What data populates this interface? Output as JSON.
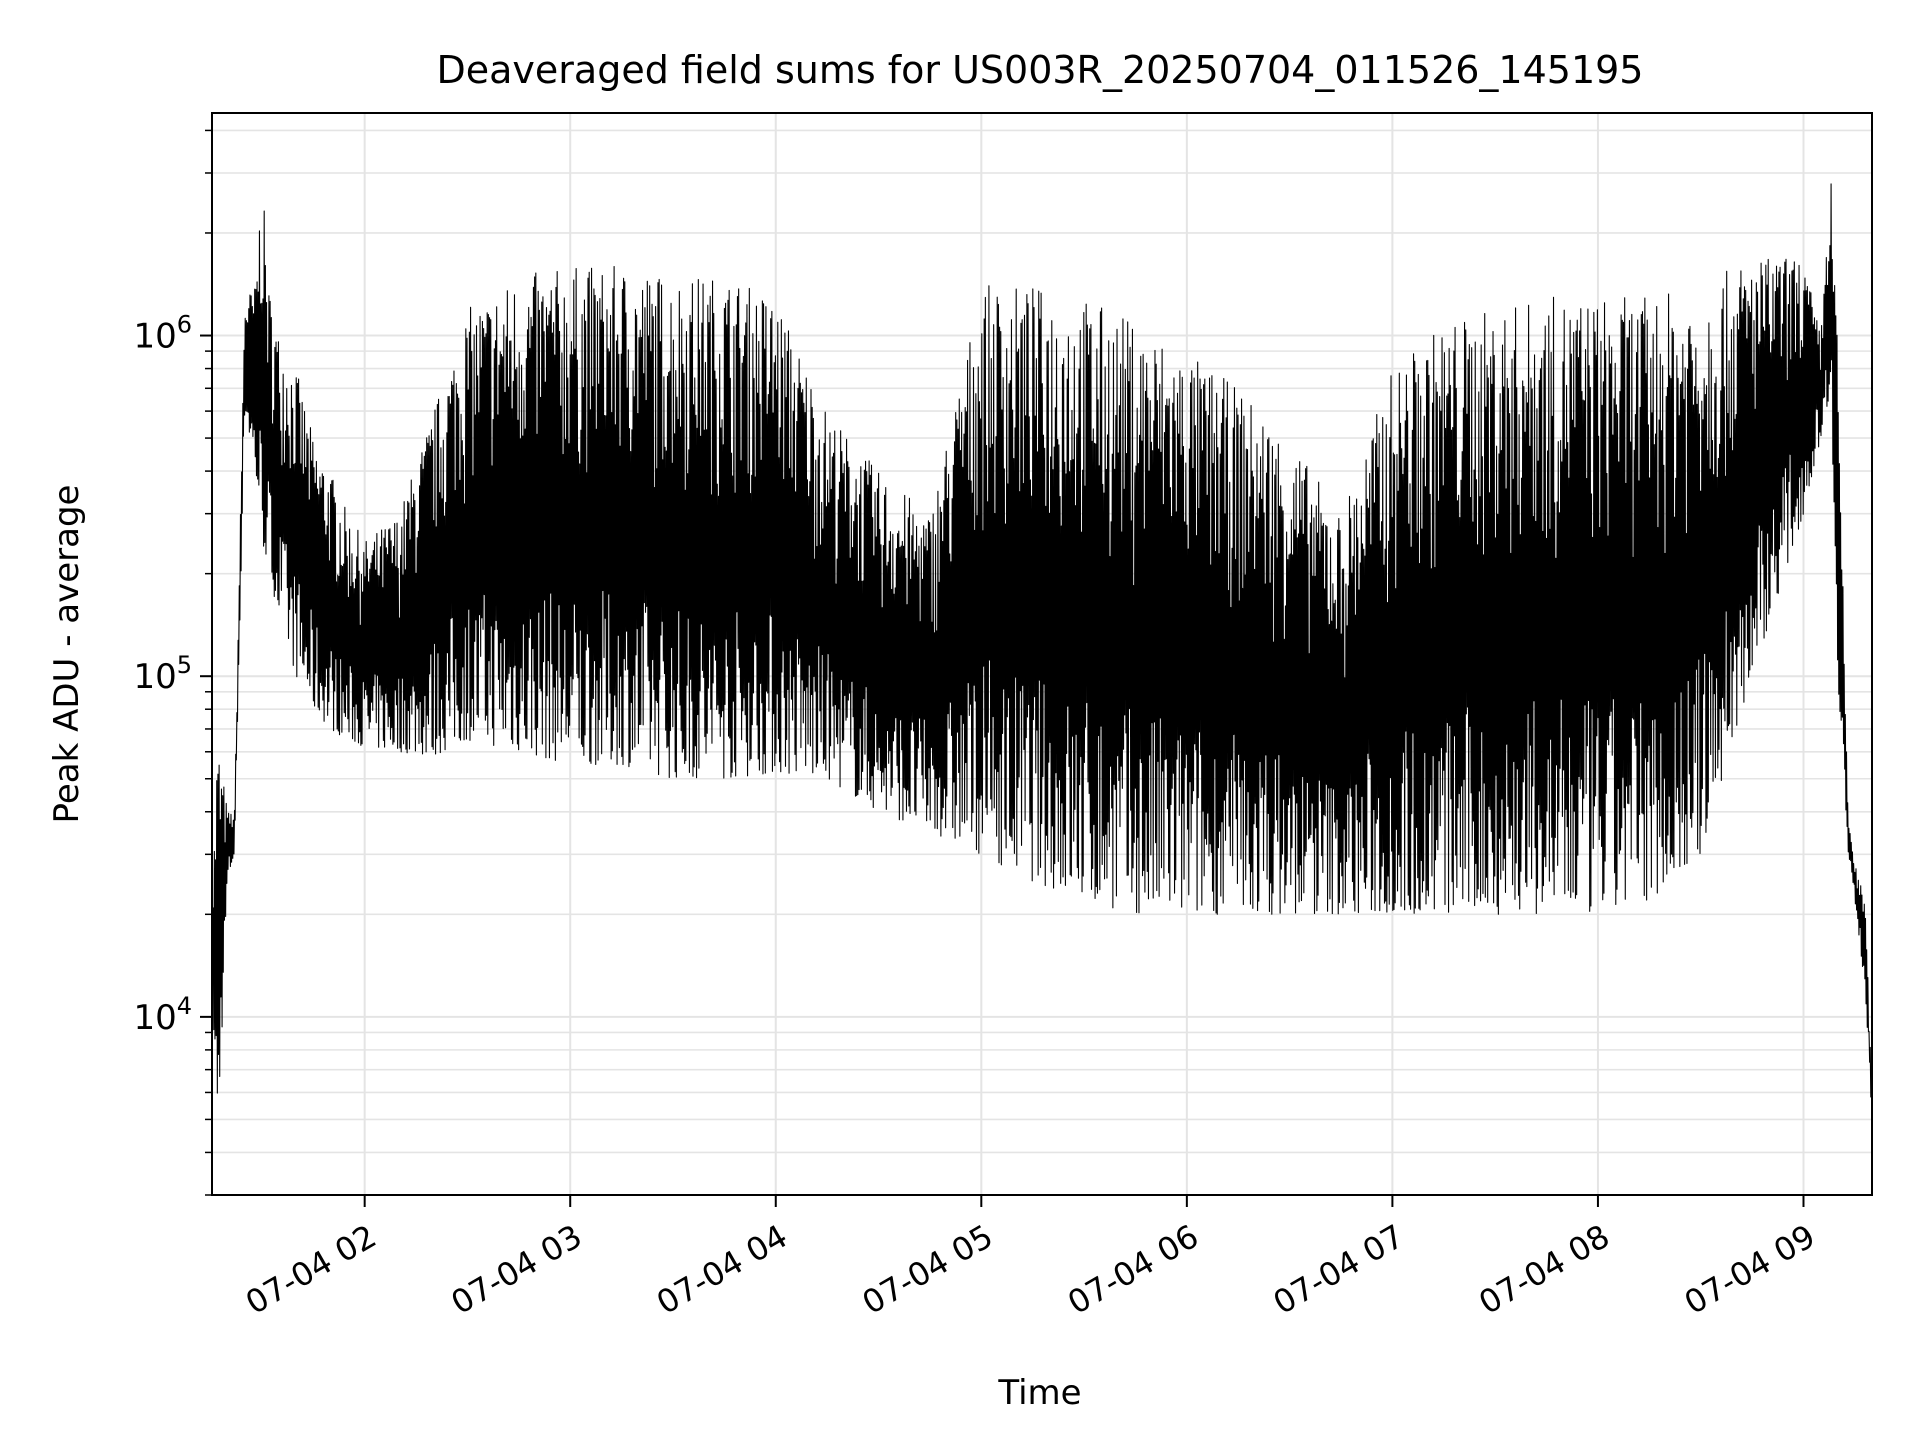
{
  "chart_data": {
    "type": "line",
    "title": "Deaveraged field sums for US003R_20250704_011526_145195",
    "xlabel": "Time",
    "ylabel": "Peak ADU - average",
    "yscale": "log",
    "ylim": [
      3000,
      4500000
    ],
    "xlim": [
      "2025-07-04 01:15:26",
      "2025-07-04 09:20:00"
    ],
    "grid": true,
    "legend": "none",
    "line_color": "#000000",
    "x_ticks": [
      {
        "value": "2025-07-04 02:00",
        "label": "07-04 02"
      },
      {
        "value": "2025-07-04 03:00",
        "label": "07-04 03"
      },
      {
        "value": "2025-07-04 04:00",
        "label": "07-04 04"
      },
      {
        "value": "2025-07-04 05:00",
        "label": "07-04 05"
      },
      {
        "value": "2025-07-04 06:00",
        "label": "07-04 06"
      },
      {
        "value": "2025-07-04 07:00",
        "label": "07-04 07"
      },
      {
        "value": "2025-07-04 08:00",
        "label": "07-04 08"
      },
      {
        "value": "2025-07-04 09:00",
        "label": "07-04 09"
      }
    ],
    "y_ticks": [
      {
        "value": 10000,
        "base": "10",
        "exp": "4"
      },
      {
        "value": 100000,
        "base": "10",
        "exp": "5"
      },
      {
        "value": 1000000,
        "base": "10",
        "exp": "6"
      }
    ],
    "series": [
      {
        "x": [
          "2025-07-04 01:15:26",
          "2025-07-04 01:17:00",
          "2025-07-04 01:20:00",
          "2025-07-04 01:22:00",
          "2025-07-04 01:25:00",
          "2025-07-04 01:28:00",
          "2025-07-04 01:30:00",
          "2025-07-04 01:32:00",
          "2025-07-04 01:35:00",
          "2025-07-04 01:40:00",
          "2025-07-04 01:45:00",
          "2025-07-04 01:50:00",
          "2025-07-04 01:55:00",
          "2025-07-04 02:00:00",
          "2025-07-04 02:10:00",
          "2025-07-04 02:20:00",
          "2025-07-04 02:30:00",
          "2025-07-04 02:45:00",
          "2025-07-04 03:00:00",
          "2025-07-04 03:15:00",
          "2025-07-04 03:30:00",
          "2025-07-04 03:45:00",
          "2025-07-04 04:00:00",
          "2025-07-04 04:15:00",
          "2025-07-04 04:30:00",
          "2025-07-04 04:45:00",
          "2025-07-04 05:00:00",
          "2025-07-04 05:15:00",
          "2025-07-04 05:30:00",
          "2025-07-04 05:45:00",
          "2025-07-04 06:00:00",
          "2025-07-04 06:15:00",
          "2025-07-04 06:30:00",
          "2025-07-04 06:45:00",
          "2025-07-04 07:00:00",
          "2025-07-04 07:15:00",
          "2025-07-04 07:30:00",
          "2025-07-04 07:45:00",
          "2025-07-04 08:00:00",
          "2025-07-04 08:15:00",
          "2025-07-04 08:30:00",
          "2025-07-04 08:45:00",
          "2025-07-04 09:00:00",
          "2025-07-04 09:05:00",
          "2025-07-04 09:08:00",
          "2025-07-04 09:10:00",
          "2025-07-04 09:13:00",
          "2025-07-04 09:15:00",
          "2025-07-04 09:18:00",
          "2025-07-04 09:20:00"
        ],
        "low": [
          13000,
          4000,
          25000,
          30000,
          600000,
          400000,
          250000,
          200000,
          150000,
          100000,
          80000,
          70000,
          65000,
          62000,
          60000,
          58000,
          65000,
          60000,
          55000,
          55000,
          50000,
          50000,
          52000,
          50000,
          40000,
          35000,
          30000,
          25000,
          22000,
          20000,
          20000,
          20000,
          20000,
          20000,
          20000,
          20000,
          20000,
          20000,
          20000,
          22000,
          30000,
          100000,
          300000,
          500000,
          700000,
          100000,
          30000,
          22000,
          12000,
          5000
        ],
        "high": [
          20000,
          68000,
          40000,
          40000,
          1300000,
          1400000,
          3000000,
          1400000,
          1000000,
          800000,
          500000,
          400000,
          300000,
          250000,
          300000,
          600000,
          1200000,
          1500000,
          1600000,
          1600000,
          1500000,
          1500000,
          1300000,
          600000,
          400000,
          300000,
          1400000,
          1400000,
          1300000,
          1100000,
          900000,
          700000,
          500000,
          300000,
          800000,
          1100000,
          1200000,
          1300000,
          1300000,
          1300000,
          1400000,
          1700000,
          1700000,
          1000000,
          3000000,
          900000,
          40000,
          28000,
          22000,
          6000
        ]
      }
    ]
  }
}
